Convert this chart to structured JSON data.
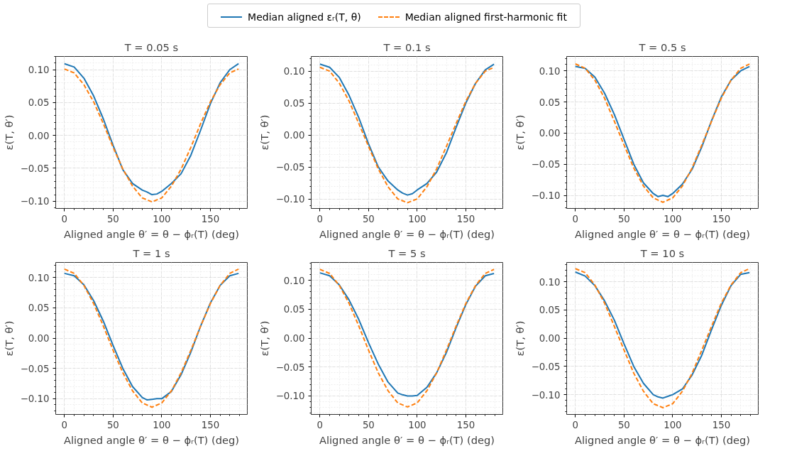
{
  "chart_data": [
    {
      "type": "line",
      "title": "T = 0.05 s",
      "xlabel": "Aligned angle θ′ = θ − ϕᵣ(T) (deg)",
      "ylabel": "ε(T, θ′)",
      "legend": "top",
      "grid": true,
      "xlim": [
        -9,
        188
      ],
      "ylim": [
        -0.111,
        0.12
      ],
      "xticks": [
        0,
        50,
        100,
        150
      ],
      "yticks": [
        {
          "value": -0.1,
          "label": "−0.10"
        },
        {
          "value": -0.05,
          "label": "−0.05"
        },
        {
          "value": 0,
          "label": "0.00"
        },
        {
          "value": 0.05,
          "label": "0.05"
        },
        {
          "value": 0.1,
          "label": "0.10"
        }
      ],
      "series": [
        {
          "name": "Median aligned εᵣ(T, θ)",
          "color": "#1f77b4",
          "line_style": "solid",
          "x": [
            0,
            10,
            20,
            30,
            40,
            50,
            60,
            70,
            80,
            85,
            90,
            95,
            100,
            110,
            120,
            130,
            140,
            150,
            160,
            170,
            179
          ],
          "values": [
            0.109,
            0.104,
            0.087,
            0.06,
            0.025,
            -0.015,
            -0.052,
            -0.073,
            -0.083,
            -0.086,
            -0.09,
            -0.089,
            -0.085,
            -0.073,
            -0.058,
            -0.03,
            0.008,
            0.048,
            0.08,
            0.1,
            0.109
          ]
        },
        {
          "name": "Median aligned first-harmonic fit",
          "color": "#ff7f0e",
          "line_style": "dashed",
          "x": [
            0,
            10,
            20,
            30,
            40,
            50,
            60,
            70,
            80,
            90,
            100,
            110,
            120,
            130,
            140,
            150,
            160,
            170,
            179
          ],
          "values": [
            0.101,
            0.095,
            0.077,
            0.051,
            0.018,
            -0.018,
            -0.051,
            -0.077,
            -0.095,
            -0.101,
            -0.095,
            -0.077,
            -0.051,
            -0.018,
            0.018,
            0.051,
            0.077,
            0.095,
            0.101
          ]
        }
      ]
    },
    {
      "type": "line",
      "title": "T = 0.1 s",
      "xlabel": "Aligned angle θ′ = θ − ϕᵣ(T) (deg)",
      "ylabel": "ε(T, θ′)",
      "grid": true,
      "xlim": [
        -9,
        188
      ],
      "ylim": [
        -0.115,
        0.123
      ],
      "xticks": [
        0,
        50,
        100,
        150
      ],
      "yticks": [
        {
          "value": -0.1,
          "label": "−0.10"
        },
        {
          "value": -0.05,
          "label": "−0.05"
        },
        {
          "value": 0,
          "label": "0.00"
        },
        {
          "value": 0.05,
          "label": "0.05"
        },
        {
          "value": 0.1,
          "label": "0.10"
        }
      ],
      "series": [
        {
          "color": "#1f77b4",
          "line_style": "solid",
          "x": [
            0,
            10,
            20,
            30,
            40,
            50,
            60,
            70,
            80,
            85,
            90,
            95,
            100,
            110,
            120,
            130,
            140,
            150,
            160,
            170,
            179
          ],
          "values": [
            0.111,
            0.106,
            0.09,
            0.062,
            0.027,
            -0.014,
            -0.05,
            -0.072,
            -0.086,
            -0.091,
            -0.094,
            -0.092,
            -0.086,
            -0.076,
            -0.058,
            -0.028,
            0.012,
            0.05,
            0.081,
            0.102,
            0.111
          ]
        },
        {
          "color": "#ff7f0e",
          "line_style": "dashed",
          "x": [
            0,
            10,
            20,
            30,
            40,
            50,
            60,
            70,
            80,
            90,
            100,
            110,
            120,
            130,
            140,
            150,
            160,
            170,
            179
          ],
          "values": [
            0.106,
            0.1,
            0.081,
            0.053,
            0.018,
            -0.018,
            -0.053,
            -0.081,
            -0.1,
            -0.106,
            -0.1,
            -0.081,
            -0.053,
            -0.018,
            0.018,
            0.053,
            0.081,
            0.1,
            0.106
          ]
        }
      ]
    },
    {
      "type": "line",
      "title": "T = 0.5 s",
      "xlabel": "Aligned angle θ′ = θ − ϕᵣ(T) (deg)",
      "ylabel": "ε(T, θ′)",
      "grid": true,
      "xlim": [
        -9,
        188
      ],
      "ylim": [
        -0.121,
        0.123
      ],
      "xticks": [
        0,
        50,
        100,
        150
      ],
      "yticks": [
        {
          "value": -0.1,
          "label": "−0.10"
        },
        {
          "value": -0.05,
          "label": "−0.05"
        },
        {
          "value": 0,
          "label": "0.00"
        },
        {
          "value": 0.05,
          "label": "0.05"
        },
        {
          "value": 0.1,
          "label": "0.10"
        }
      ],
      "series": [
        {
          "color": "#1f77b4",
          "line_style": "solid",
          "x": [
            0,
            10,
            20,
            30,
            40,
            50,
            60,
            70,
            80,
            85,
            90,
            95,
            100,
            110,
            120,
            130,
            140,
            150,
            160,
            170,
            179
          ],
          "values": [
            0.107,
            0.104,
            0.09,
            0.064,
            0.03,
            -0.01,
            -0.05,
            -0.08,
            -0.097,
            -0.102,
            -0.1,
            -0.102,
            -0.097,
            -0.082,
            -0.058,
            -0.022,
            0.02,
            0.058,
            0.085,
            0.1,
            0.107
          ]
        },
        {
          "color": "#ff7f0e",
          "line_style": "dashed",
          "x": [
            0,
            10,
            20,
            30,
            40,
            50,
            60,
            70,
            80,
            90,
            100,
            110,
            120,
            130,
            140,
            150,
            160,
            170,
            179
          ],
          "values": [
            0.111,
            0.104,
            0.085,
            0.056,
            0.019,
            -0.019,
            -0.056,
            -0.085,
            -0.104,
            -0.111,
            -0.104,
            -0.085,
            -0.056,
            -0.019,
            0.019,
            0.056,
            0.085,
            0.104,
            0.111
          ]
        }
      ]
    },
    {
      "type": "line",
      "title": "T = 1 s",
      "xlabel": "Aligned angle θ′ = θ − ϕᵣ(T) (deg)",
      "ylabel": "ε(T, θ′)",
      "grid": true,
      "xlim": [
        -9,
        188
      ],
      "ylim": [
        -0.126,
        0.125
      ],
      "xticks": [
        0,
        50,
        100,
        150
      ],
      "yticks": [
        {
          "value": -0.1,
          "label": "−0.10"
        },
        {
          "value": -0.05,
          "label": "−0.05"
        },
        {
          "value": 0,
          "label": "0.00"
        },
        {
          "value": 0.05,
          "label": "0.05"
        },
        {
          "value": 0.1,
          "label": "0.10"
        }
      ],
      "series": [
        {
          "color": "#1f77b4",
          "line_style": "solid",
          "x": [
            0,
            10,
            20,
            30,
            40,
            50,
            60,
            70,
            80,
            85,
            90,
            95,
            100,
            110,
            120,
            130,
            140,
            150,
            160,
            170,
            179
          ],
          "values": [
            0.107,
            0.103,
            0.088,
            0.062,
            0.028,
            -0.012,
            -0.05,
            -0.08,
            -0.098,
            -0.102,
            -0.101,
            -0.1,
            -0.1,
            -0.088,
            -0.06,
            -0.023,
            0.02,
            0.058,
            0.087,
            0.103,
            0.107
          ]
        },
        {
          "color": "#ff7f0e",
          "line_style": "dashed",
          "x": [
            0,
            10,
            20,
            30,
            40,
            50,
            60,
            70,
            80,
            90,
            100,
            110,
            120,
            130,
            140,
            150,
            160,
            170,
            179
          ],
          "values": [
            0.114,
            0.107,
            0.087,
            0.057,
            0.02,
            -0.02,
            -0.057,
            -0.087,
            -0.107,
            -0.114,
            -0.107,
            -0.087,
            -0.057,
            -0.02,
            0.02,
            0.057,
            0.087,
            0.107,
            0.114
          ]
        }
      ]
    },
    {
      "type": "line",
      "title": "T = 5 s",
      "xlabel": "Aligned angle θ′ = θ − ϕᵣ(T) (deg)",
      "ylabel": "ε(T, θ′)",
      "grid": true,
      "xlim": [
        -9,
        188
      ],
      "ylim": [
        -0.132,
        0.131
      ],
      "xticks": [
        0,
        50,
        100,
        150
      ],
      "yticks": [
        {
          "value": -0.1,
          "label": "−0.10"
        },
        {
          "value": -0.05,
          "label": "−0.05"
        },
        {
          "value": 0,
          "label": "0.00"
        },
        {
          "value": 0.05,
          "label": "0.05"
        },
        {
          "value": 0.1,
          "label": "0.10"
        }
      ],
      "series": [
        {
          "color": "#1f77b4",
          "line_style": "solid",
          "x": [
            0,
            10,
            20,
            30,
            40,
            50,
            60,
            70,
            80,
            85,
            90,
            95,
            100,
            110,
            120,
            130,
            140,
            150,
            160,
            170,
            179
          ],
          "values": [
            0.113,
            0.108,
            0.092,
            0.066,
            0.032,
            -0.008,
            -0.045,
            -0.076,
            -0.095,
            -0.098,
            -0.1,
            -0.1,
            -0.099,
            -0.085,
            -0.06,
            -0.025,
            0.018,
            0.058,
            0.09,
            0.108,
            0.112
          ]
        },
        {
          "color": "#ff7f0e",
          "line_style": "dashed",
          "x": [
            0,
            10,
            20,
            30,
            40,
            50,
            60,
            70,
            80,
            90,
            100,
            110,
            120,
            130,
            140,
            150,
            160,
            170,
            179
          ],
          "values": [
            0.119,
            0.112,
            0.091,
            0.06,
            0.021,
            -0.021,
            -0.06,
            -0.091,
            -0.112,
            -0.119,
            -0.112,
            -0.091,
            -0.06,
            -0.021,
            0.021,
            0.06,
            0.091,
            0.112,
            0.119
          ]
        }
      ]
    },
    {
      "type": "line",
      "title": "T = 10 s",
      "xlabel": "Aligned angle θ′ = θ − ϕᵣ(T) (deg)",
      "ylabel": "ε(T, θ′)",
      "grid": true,
      "xlim": [
        -9,
        188
      ],
      "ylim": [
        -0.135,
        0.134
      ],
      "xticks": [
        0,
        50,
        100,
        150
      ],
      "yticks": [
        {
          "value": -0.1,
          "label": "−0.10"
        },
        {
          "value": -0.05,
          "label": "−0.05"
        },
        {
          "value": 0,
          "label": "0.00"
        },
        {
          "value": 0.05,
          "label": "0.05"
        },
        {
          "value": 0.1,
          "label": "0.10"
        }
      ],
      "series": [
        {
          "color": "#1f77b4",
          "line_style": "solid",
          "x": [
            0,
            10,
            20,
            30,
            40,
            50,
            60,
            70,
            80,
            85,
            90,
            95,
            100,
            110,
            120,
            130,
            140,
            150,
            160,
            170,
            179
          ],
          "values": [
            0.117,
            0.11,
            0.093,
            0.066,
            0.032,
            -0.01,
            -0.05,
            -0.08,
            -0.1,
            -0.104,
            -0.106,
            -0.103,
            -0.1,
            -0.09,
            -0.065,
            -0.03,
            0.015,
            0.058,
            0.093,
            0.113,
            0.116
          ]
        },
        {
          "color": "#ff7f0e",
          "line_style": "dashed",
          "x": [
            0,
            10,
            20,
            30,
            40,
            50,
            60,
            70,
            80,
            90,
            100,
            110,
            120,
            130,
            140,
            150,
            160,
            170,
            179
          ],
          "values": [
            0.123,
            0.116,
            0.094,
            0.062,
            0.021,
            -0.021,
            -0.062,
            -0.094,
            -0.116,
            -0.123,
            -0.116,
            -0.094,
            -0.062,
            -0.021,
            0.021,
            0.062,
            0.094,
            0.116,
            0.123
          ]
        }
      ]
    }
  ]
}
